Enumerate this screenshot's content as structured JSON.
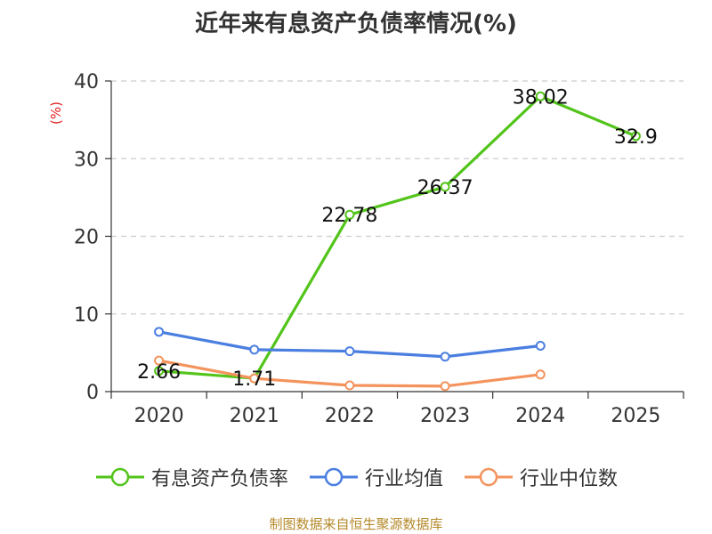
{
  "chart_data": {
    "type": "line",
    "title": "近年来有息资产负债率情况(%)",
    "ylabel": "(%)",
    "xlabel": "",
    "categories": [
      "2020",
      "2021",
      "2022",
      "2023",
      "2024",
      "2025"
    ],
    "ylim": [
      0,
      40
    ],
    "yticks": [
      0,
      10,
      20,
      30,
      40
    ],
    "grid": true,
    "legend_position": "bottom",
    "series": [
      {
        "name": "有息资产负债率",
        "color": "#52c41a",
        "values": [
          2.66,
          1.71,
          22.78,
          26.37,
          38.02,
          32.9
        ],
        "labels": [
          "2.66",
          "1.71",
          "22.78",
          "26.37",
          "38.02",
          "32.9"
        ]
      },
      {
        "name": "行业均值",
        "color": "#4a7ee0",
        "values": [
          7.7,
          5.4,
          5.2,
          4.5,
          5.9,
          null
        ]
      },
      {
        "name": "行业中位数",
        "color": "#f4935c",
        "values": [
          4.0,
          1.7,
          0.8,
          0.7,
          2.2,
          null
        ]
      }
    ]
  },
  "source_note": "制图数据来自恒生聚源数据库"
}
